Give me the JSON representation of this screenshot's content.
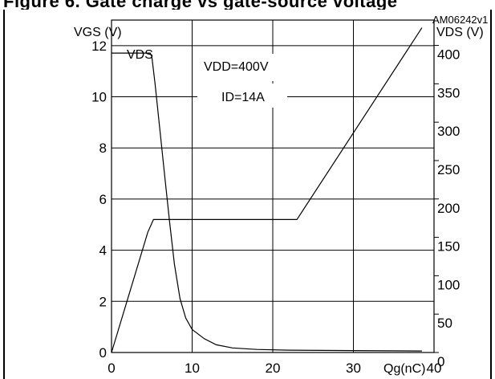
{
  "figure_caption": "Figure 6. Gate charge vs gate-source voltage",
  "figure_id": "AM06242v1",
  "chart_data": {
    "type": "line",
    "xlabel": "Qg(nC)",
    "ylabel_left": "VGS (V)",
    "ylabel_right": "VDS (V)",
    "x_ticks": [
      "0",
      "10",
      "20",
      "30",
      "40"
    ],
    "y_left_ticks": [
      "0",
      "2",
      "4",
      "6",
      "8",
      "10",
      "12"
    ],
    "y_right_ticks": [
      "0",
      "50",
      "100",
      "150",
      "200",
      "250",
      "300",
      "350",
      "400"
    ],
    "xlim": [
      0,
      40
    ],
    "ylim_left": [
      0,
      13
    ],
    "ylim_right": [
      0,
      433
    ],
    "grid": true,
    "annotations": {
      "vds_label": "VDS",
      "vdd": "VDD=400V",
      "id": "ID=14A"
    },
    "series": [
      {
        "axis": "left",
        "points": [
          [
            0,
            0
          ],
          [
            4.5,
            4.7
          ],
          [
            5.2,
            5.2
          ],
          [
            23,
            5.2
          ],
          [
            38.5,
            12.7
          ]
        ]
      },
      {
        "axis": "right",
        "points": [
          [
            0,
            390
          ],
          [
            4.8,
            390
          ],
          [
            5,
            385
          ],
          [
            5.4,
            350
          ],
          [
            6,
            290
          ],
          [
            6.6,
            230
          ],
          [
            7.2,
            170
          ],
          [
            7.8,
            115
          ],
          [
            8.5,
            70
          ],
          [
            9.2,
            45
          ],
          [
            10,
            30
          ],
          [
            11.5,
            18
          ],
          [
            13,
            10
          ],
          [
            15,
            6
          ],
          [
            18,
            4
          ],
          [
            22,
            3
          ],
          [
            30,
            2.5
          ],
          [
            38.5,
            2
          ]
        ]
      }
    ]
  }
}
